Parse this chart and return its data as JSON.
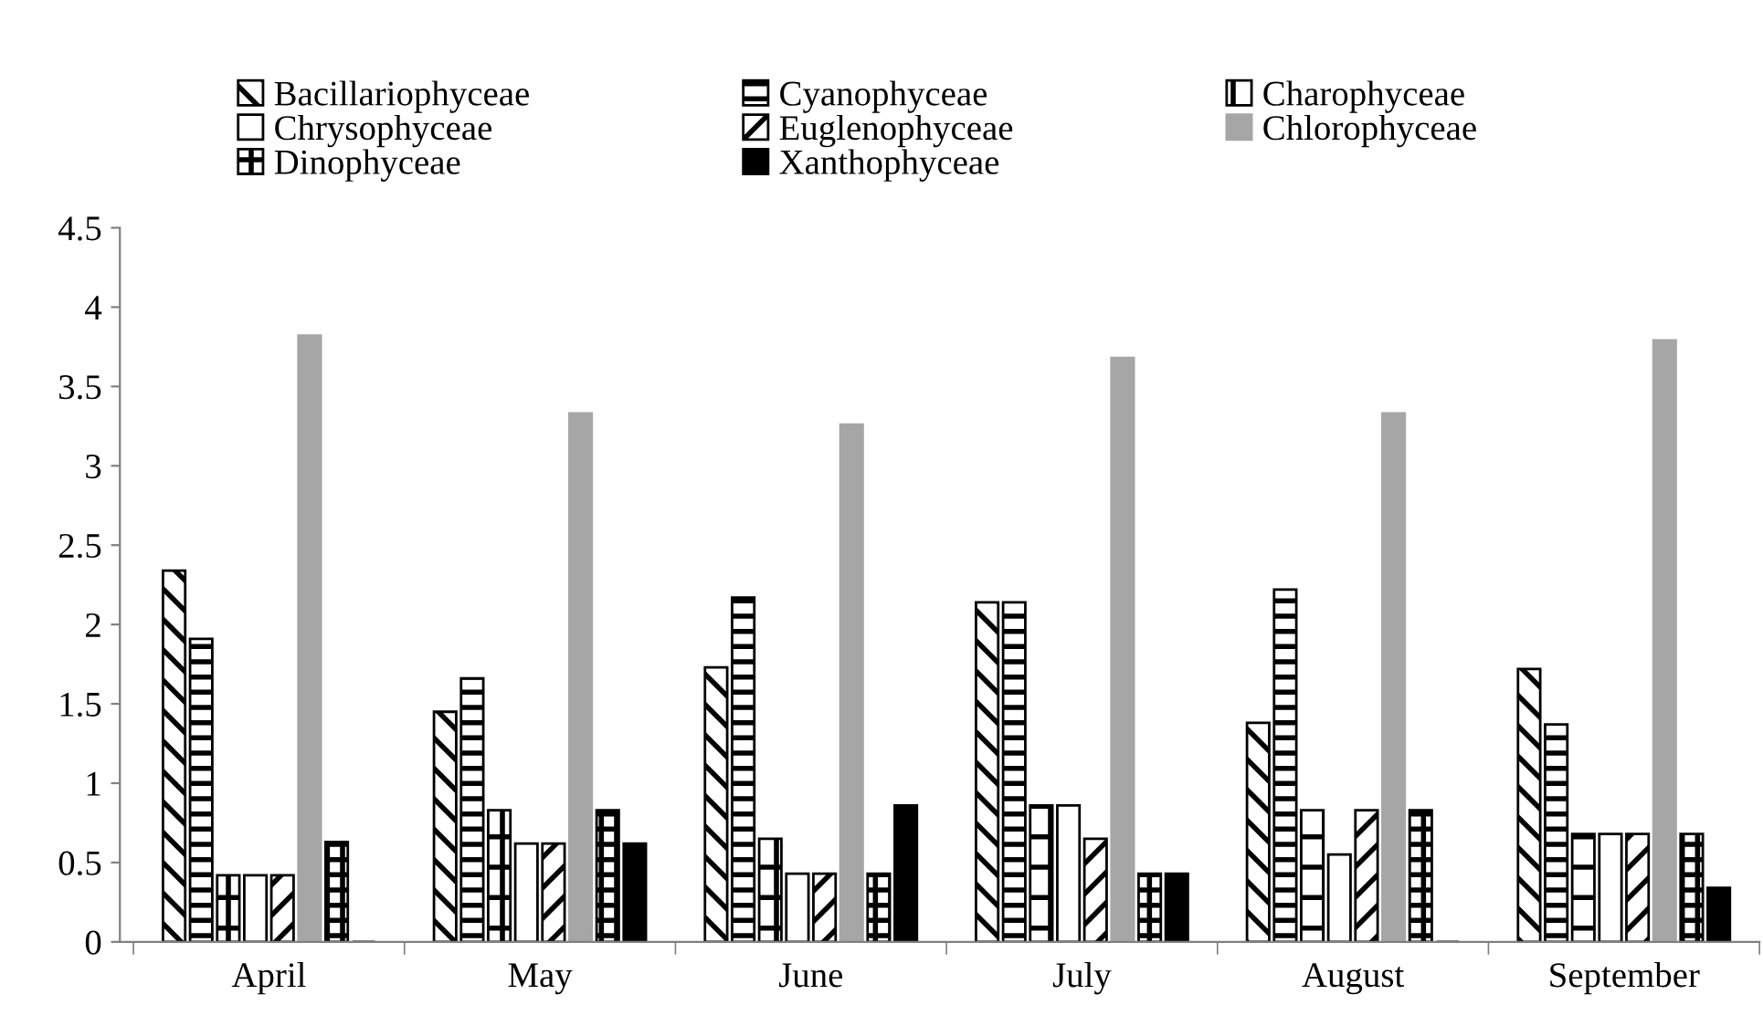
{
  "chart_data": {
    "type": "bar",
    "categories": [
      "April",
      "May",
      "June",
      "July",
      "August",
      "September"
    ],
    "series": [
      {
        "name": "Bacillariophyceae",
        "color": "#000000",
        "values": [
          2.34,
          1.45,
          1.73,
          2.14,
          1.38,
          1.72
        ]
      },
      {
        "name": "Cyanophyceae",
        "color": "#000000",
        "values": [
          1.91,
          1.66,
          2.17,
          2.14,
          2.22,
          1.37
        ]
      },
      {
        "name": "Charophyceae",
        "color": "#000000",
        "values": [
          0.42,
          0.83,
          0.65,
          0.86,
          0.83,
          0.68
        ]
      },
      {
        "name": "Chrysophyceae",
        "color": "#000000",
        "values": [
          0.42,
          0.62,
          0.43,
          0.86,
          0.55,
          0.68
        ]
      },
      {
        "name": "Euglenophyceae",
        "color": "#000000",
        "values": [
          0.42,
          0.62,
          0.43,
          0.65,
          0.83,
          0.68
        ]
      },
      {
        "name": "Chlorophyceae",
        "color": "#a6a6a6",
        "values": [
          3.82,
          3.33,
          3.26,
          3.68,
          3.33,
          3.79
        ]
      },
      {
        "name": "Dinophyceae",
        "color": "#000000",
        "values": [
          0.63,
          0.83,
          0.43,
          0.43,
          0.83,
          0.68
        ]
      },
      {
        "name": "Xanthophyceae",
        "color": "#000000",
        "values": [
          0,
          0.62,
          0.86,
          0.43,
          0,
          0.34
        ]
      }
    ],
    "ylim": [
      0,
      4.5
    ],
    "yticks": [
      0,
      0.5,
      1,
      1.5,
      2,
      2.5,
      3,
      3.5,
      4,
      4.5
    ],
    "grid": false,
    "legend": "top"
  }
}
